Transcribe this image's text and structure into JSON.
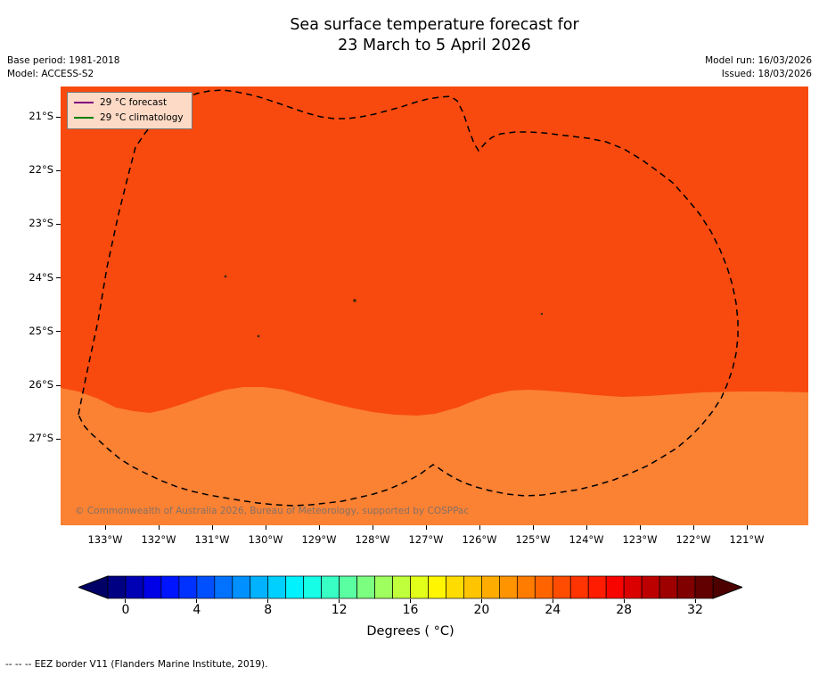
{
  "title": {
    "line1": "Sea surface temperature forecast for",
    "line2": "23 March to 5 April 2026"
  },
  "meta": {
    "base_period": "Base period: 1981-2018",
    "model": "Model: ACCESS-S2",
    "model_run": "Model run: 16/03/2026",
    "issued": "Issued: 18/03/2026"
  },
  "legend": {
    "items": [
      {
        "label": "29 °C  forecast",
        "color": "#800080"
      },
      {
        "label": "29 °C  climatology",
        "color": "#008000"
      }
    ]
  },
  "map": {
    "lat_ticks": [
      "21°S",
      "22°S",
      "23°S",
      "24°S",
      "25°S",
      "26°S",
      "27°S"
    ],
    "lon_ticks": [
      "133°W",
      "132°W",
      "131°W",
      "130°W",
      "129°W",
      "128°W",
      "127°W",
      "126°W",
      "125°W",
      "124°W",
      "123°W",
      "122°W",
      "121°W"
    ],
    "copyright": "© Commonwealth of Australia 2026, Bureau of Meteorology, supported by COSPPac",
    "colors": {
      "sst_main": "#f84a0e",
      "sst_band": "#fb8133",
      "eez_border": "#000000",
      "island": "#40280f"
    }
  },
  "colorbar": {
    "tick_labels": [
      "0",
      "4",
      "8",
      "12",
      "16",
      "20",
      "24",
      "28",
      "32"
    ],
    "label": "Degrees ( °C)",
    "vmin": -1,
    "vmax": 33,
    "arrow_left": "#000066",
    "arrow_right": "#4c0000",
    "colors": [
      "#000082",
      "#0000b4",
      "#0000e6",
      "#0014ff",
      "#0032ff",
      "#0050ff",
      "#0072ff",
      "#0090ff",
      "#00b2ff",
      "#00d0ff",
      "#00f2ff",
      "#16ffe6",
      "#38ffc4",
      "#5affa2",
      "#7cff80",
      "#9eff5e",
      "#c0ff3c",
      "#e2ff1a",
      "#fff600",
      "#ffdc00",
      "#ffc400",
      "#ffac00",
      "#ff9400",
      "#ff7c00",
      "#ff6400",
      "#ff4c00",
      "#ff3400",
      "#ff1c00",
      "#f80400",
      "#da0000",
      "#bc0000",
      "#9e0000",
      "#800000",
      "#620000"
    ]
  },
  "footer": {
    "eez_note": "-- --  -- EEZ border V11 (Flanders Marine Institute, 2019)."
  },
  "chart_data": {
    "type": "heatmap",
    "title": "Sea surface temperature forecast for 23 March to 5 April 2026",
    "x_tick_labels": [
      "133°W",
      "132°W",
      "131°W",
      "130°W",
      "129°W",
      "128°W",
      "127°W",
      "126°W",
      "125°W",
      "124°W",
      "123°W",
      "122°W",
      "121°W"
    ],
    "y_tick_labels": [
      "21°S",
      "22°S",
      "23°S",
      "24°S",
      "25°S",
      "26°S",
      "27°S"
    ],
    "colorbar": {
      "tick_values": [
        0,
        4,
        8,
        12,
        16,
        20,
        24,
        28,
        32
      ],
      "label": "Degrees ( °C)"
    },
    "sst_field": [
      {
        "region": "dominant field covering the map north of a wavy boundary near 26.3°S",
        "approx_sst_c": 28,
        "fill_color": "#f84a0e"
      },
      {
        "region": "cooler band along the southern edge of the map (south of ~26.3°S)",
        "approx_sst_c": 26.5,
        "fill_color": "#fb8133"
      }
    ],
    "contours_legend": [
      {
        "label": "29 °C  forecast",
        "color": "#800080",
        "drawn_on_map": false
      },
      {
        "label": "29 °C  climatology",
        "color": "#008000",
        "drawn_on_map": false
      }
    ],
    "overlays": [
      "dashed EEZ border loop enclosing the region",
      "4 small island dots inside the EEZ"
    ]
  }
}
